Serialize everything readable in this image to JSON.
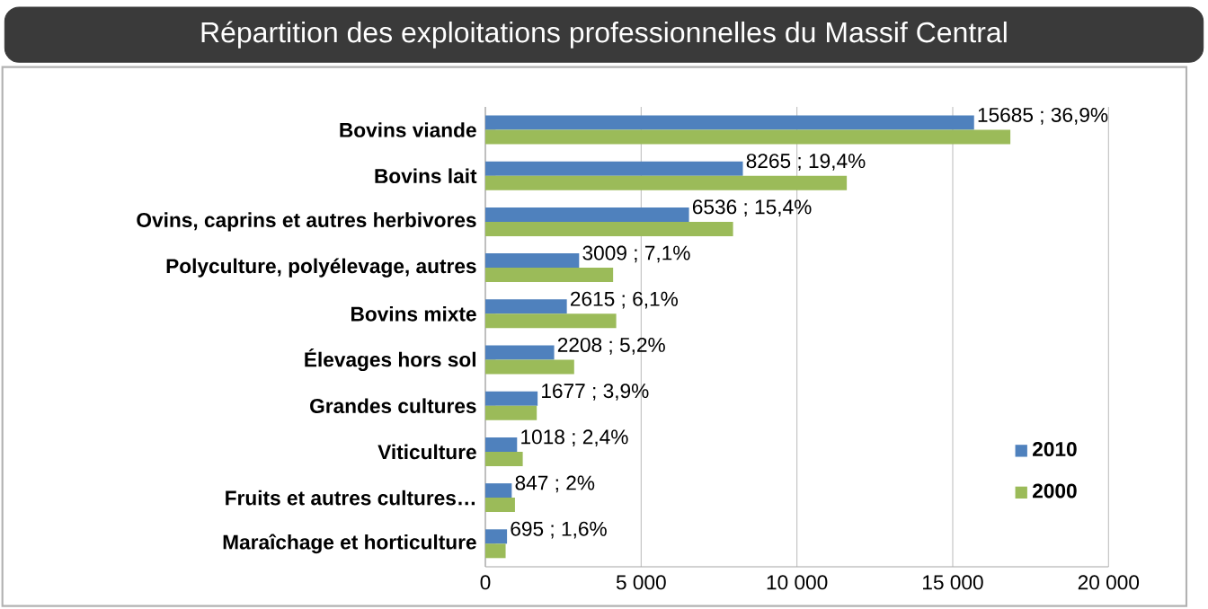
{
  "chart_data": {
    "type": "bar",
    "orientation": "horizontal",
    "title": "Répartition des exploitations professionnelles du Massif Central",
    "categories": [
      "Bovins viande",
      "Bovins lait",
      "Ovins, caprins et autres herbivores",
      "Polyculture, polyélevage, autres",
      "Bovins mixte",
      "Élevages hors sol",
      "Grandes cultures",
      "Viticulture",
      "Fruits et autres cultures…",
      "Maraîchage et horticulture"
    ],
    "series": [
      {
        "name": "2010",
        "color": "#4f81bd",
        "values": [
          15685,
          8265,
          6536,
          3009,
          2615,
          2208,
          1677,
          1018,
          847,
          695
        ],
        "value_labels": [
          "15685 ; 36,9%",
          "8265 ; 19,4%",
          "6536 ; 15,4%",
          "3009 ; 7,1%",
          "2615 ; 6,1%",
          "2208 ; 5,2%",
          "1677 ; 3,9%",
          "1018 ; 2,4%",
          "847 ; 2%",
          "695 ; 1,6%"
        ]
      },
      {
        "name": "2000",
        "color": "#9bbb59",
        "values": [
          16850,
          11600,
          7950,
          4100,
          4200,
          2850,
          1650,
          1200,
          950,
          650
        ]
      }
    ],
    "xlim": [
      0,
      20000
    ],
    "xticks": [
      0,
      {
        "value": 5000,
        "label": "5 000"
      },
      {
        "value": 10000,
        "label": "10 000"
      },
      {
        "value": 15000,
        "label": "15 000"
      },
      {
        "value": 20000,
        "label": "20 000"
      }
    ],
    "grid": "x",
    "legend": "right"
  }
}
